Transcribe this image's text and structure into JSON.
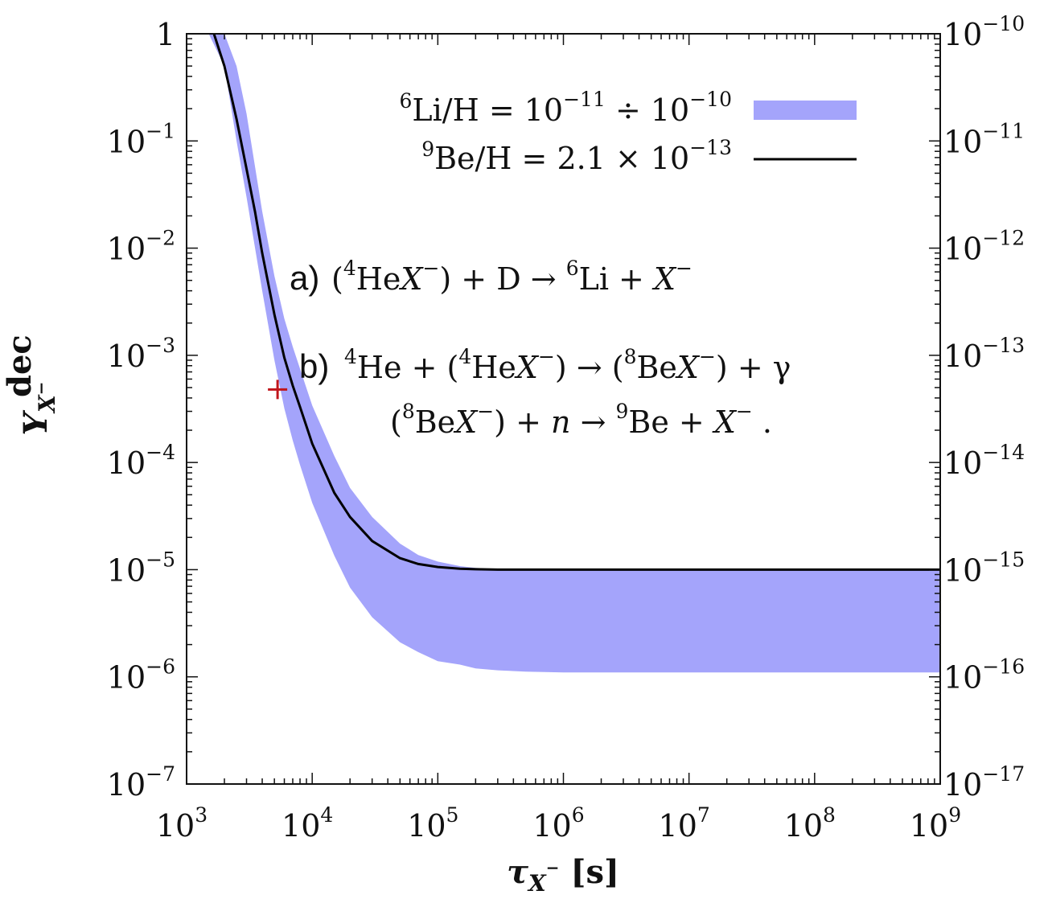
{
  "chart_data": {
    "type": "area",
    "xscale": "log",
    "yscale": "log",
    "xlim": [
      1000,
      1000000000
    ],
    "ylim": [
      1e-07,
      1
    ],
    "y2lim": [
      1e-17,
      1e-10
    ],
    "xlabel_main": "τ",
    "xlabel_sub": "X",
    "xlabel_sup": "−",
    "xlabel_unit": "[s]",
    "ylabel_main": "Y",
    "ylabel_sub": "X",
    "ylabel_sub_sup": "−",
    "ylabel_sup": "dec",
    "x_ticks": [
      {
        "base": "10",
        "exp": "3"
      },
      {
        "base": "10",
        "exp": "4"
      },
      {
        "base": "10",
        "exp": "5"
      },
      {
        "base": "10",
        "exp": "6"
      },
      {
        "base": "10",
        "exp": "7"
      },
      {
        "base": "10",
        "exp": "8"
      },
      {
        "base": "10",
        "exp": "9"
      }
    ],
    "y_ticks": [
      {
        "base": "1",
        "exp": ""
      },
      {
        "base": "10",
        "exp": "−1"
      },
      {
        "base": "10",
        "exp": "−2"
      },
      {
        "base": "10",
        "exp": "−3"
      },
      {
        "base": "10",
        "exp": "−4"
      },
      {
        "base": "10",
        "exp": "−5"
      },
      {
        "base": "10",
        "exp": "−6"
      },
      {
        "base": "10",
        "exp": "−7"
      }
    ],
    "y2_ticks": [
      {
        "base": "10",
        "exp": "−10"
      },
      {
        "base": "10",
        "exp": "−11"
      },
      {
        "base": "10",
        "exp": "−12"
      },
      {
        "base": "10",
        "exp": "−13"
      },
      {
        "base": "10",
        "exp": "−14"
      },
      {
        "base": "10",
        "exp": "−15"
      },
      {
        "base": "10",
        "exp": "−16"
      },
      {
        "base": "10",
        "exp": "−17"
      }
    ],
    "band": {
      "color": "#a4a4fb",
      "x": [
        1500,
        2000,
        2500,
        3000,
        4000,
        5000,
        6000,
        7000,
        8000,
        10000,
        15000,
        20000,
        30000,
        50000,
        70000,
        100000,
        150000,
        200000,
        300000,
        500000,
        1000000,
        3000000,
        10000000,
        100000000,
        1000000000
      ],
      "upper": [
        1,
        1,
        0.5,
        0.18,
        0.022,
        0.0055,
        0.0022,
        0.0012,
        0.00075,
        0.00034,
        0.000115,
        5.8e-05,
        3.1e-05,
        1.75e-05,
        1.37e-05,
        1.19e-05,
        1.08e-05,
        1.04e-05,
        1.01e-05,
        1e-05,
        1e-05,
        1e-05,
        1e-05,
        1e-05,
        1e-05
      ],
      "lower": [
        1,
        0.5,
        0.1,
        0.03,
        0.004,
        0.0009,
        0.00032,
        0.00016,
        9.5e-05,
        4.2e-05,
        1.35e-05,
        6.8e-06,
        3.6e-06,
        2.1e-06,
        1.7e-06,
        1.4e-06,
        1.3e-06,
        1.2e-06,
        1.15e-06,
        1.12e-06,
        1.1e-06,
        1.1e-06,
        1.1e-06,
        1.1e-06,
        1.1e-06
      ]
    },
    "line": {
      "color": "#000000",
      "x": [
        1650,
        2000,
        2500,
        3000,
        3500,
        4000,
        5000,
        6000,
        7000,
        8000,
        10000,
        15000,
        20000,
        30000,
        50000,
        70000,
        100000,
        150000,
        200000,
        300000,
        500000,
        1000000,
        10000000,
        100000000,
        1000000000
      ],
      "y": [
        1,
        0.5,
        0.16,
        0.055,
        0.022,
        0.009,
        0.0024,
        0.00095,
        0.00052,
        0.00033,
        0.00015,
        5.2e-05,
        3.1e-05,
        1.85e-05,
        1.28e-05,
        1.13e-05,
        1.06e-05,
        1.02e-05,
        1.01e-05,
        1e-05,
        1e-05,
        1e-05,
        1e-05,
        1e-05,
        1e-05
      ]
    },
    "marker": {
      "x": 5300,
      "y": 0.00048,
      "color": "#c0151b",
      "symbol": "+"
    },
    "legend": [
      {
        "type": "band",
        "sup": "6",
        "label": "Li/H = 10",
        "exp1": "−11",
        "mid": " ÷ 10",
        "exp2": "−10"
      },
      {
        "type": "line",
        "sup": "9",
        "label": "Be/H = 2.1 × 10",
        "exp1": "−13",
        "mid": "",
        "exp2": ""
      }
    ],
    "annotations": {
      "a_label": "a)",
      "a_text": [
        "(",
        "4",
        "He",
        "X",
        "−",
        ") + D → ",
        "6",
        "Li + ",
        "X",
        "−"
      ],
      "b_label": "b)",
      "b_line1": [
        "4",
        "He + (",
        "4",
        "He",
        "X",
        "−",
        ") → (",
        "8",
        "Be",
        "X",
        "−",
        ") + γ"
      ],
      "b_line2": [
        "(",
        "8",
        "Be",
        "X",
        "−",
        ") + ",
        "n",
        " → ",
        "9",
        "Be + ",
        "X",
        "−",
        " ."
      ]
    }
  }
}
